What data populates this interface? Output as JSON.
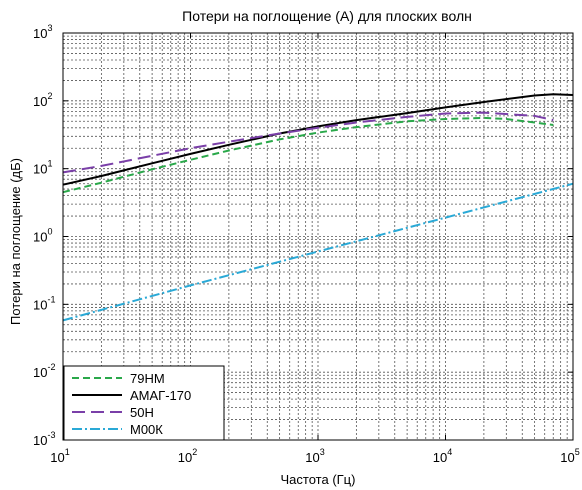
{
  "chart_data": {
    "type": "line",
    "title": "Потери на поглощение (А) для плоских волн",
    "xlabel": "Частота (Гц)",
    "ylabel": "Потери на поглощение (дБ)",
    "xscale": "log",
    "yscale": "log",
    "xlim": [
      10,
      100000
    ],
    "ylim": [
      0.001,
      1000
    ],
    "grid": true,
    "legend_position": "bottom-left",
    "x_ticks": [
      {
        "base": "10",
        "exp": "1",
        "value": 10
      },
      {
        "base": "10",
        "exp": "2",
        "value": 100
      },
      {
        "base": "10",
        "exp": "3",
        "value": 1000
      },
      {
        "base": "10",
        "exp": "4",
        "value": 10000
      },
      {
        "base": "10",
        "exp": "5",
        "value": 100000
      }
    ],
    "y_ticks": [
      {
        "base": "10",
        "exp": "-3",
        "value": 0.001
      },
      {
        "base": "10",
        "exp": "-2",
        "value": 0.01
      },
      {
        "base": "10",
        "exp": "-1",
        "value": 0.1
      },
      {
        "base": "10",
        "exp": "0",
        "value": 1
      },
      {
        "base": "10",
        "exp": "1",
        "value": 10
      },
      {
        "base": "10",
        "exp": "2",
        "value": 100
      },
      {
        "base": "10",
        "exp": "3",
        "value": 1000
      }
    ],
    "series": [
      {
        "name": "79НМ",
        "color": "#2aa84a",
        "dash": "7,4",
        "x": [
          10,
          20,
          50,
          100,
          200,
          500,
          1000,
          2000,
          5000,
          10000,
          20000,
          30000,
          50000,
          70000
        ],
        "y": [
          4.5,
          6.2,
          9.8,
          13.5,
          18.5,
          27,
          34,
          41,
          50,
          54,
          56,
          54,
          48,
          44
        ]
      },
      {
        "name": "АМАГ-170",
        "color": "#000000",
        "dash": "",
        "x": [
          10,
          20,
          50,
          100,
          200,
          500,
          1000,
          2000,
          5000,
          10000,
          20000,
          50000,
          70000,
          100000
        ],
        "y": [
          5.8,
          7.8,
          12,
          16.5,
          22.5,
          33,
          42,
          52,
          66,
          80,
          96,
          120,
          125,
          122
        ]
      },
      {
        "name": "50Н",
        "color": "#7a3fa8",
        "dash": "13,6",
        "x": [
          10,
          20,
          50,
          100,
          200,
          500,
          1000,
          2000,
          5000,
          10000,
          20000,
          50000,
          70000
        ],
        "y": [
          8.8,
          11,
          15.5,
          20,
          25,
          33,
          40,
          48,
          58,
          65,
          67,
          60,
          52
        ]
      },
      {
        "name": "М00К",
        "color": "#2aa9d6",
        "dash": "10,3,2,3",
        "x": [
          10,
          100,
          1000,
          10000,
          100000
        ],
        "y": [
          0.058,
          0.19,
          0.6,
          1.9,
          6
        ]
      }
    ]
  }
}
